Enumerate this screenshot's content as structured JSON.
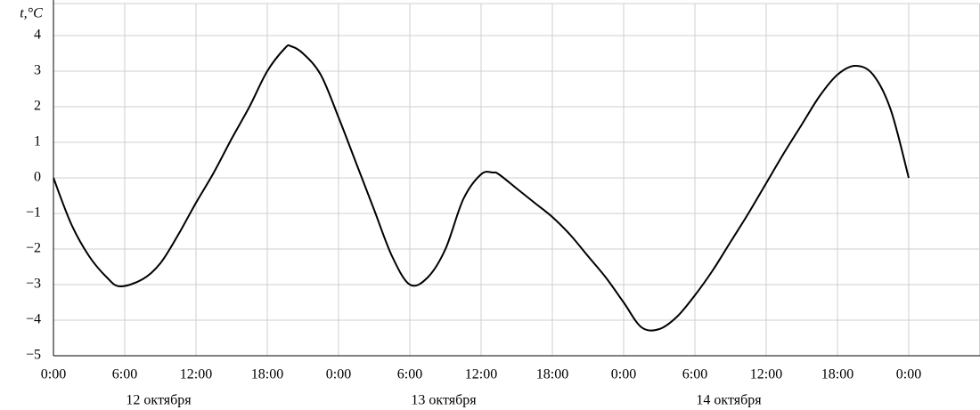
{
  "chart_data": {
    "type": "line",
    "y_label": "t,°C",
    "x": [
      0,
      1.5,
      3,
      4.5,
      5.6,
      7.5,
      9,
      10.5,
      12,
      13.5,
      15,
      16.5,
      18,
      19.5,
      20,
      21,
      22.5,
      24,
      25.5,
      27,
      28.5,
      30,
      31.5,
      33,
      34.5,
      36,
      37,
      37.5,
      39,
      40.5,
      42,
      43.5,
      45,
      46.5,
      48,
      49.5,
      51,
      52.5,
      54,
      55.5,
      57,
      58.5,
      60,
      61.5,
      63,
      64.5,
      66,
      67.5,
      69,
      70.5,
      72
    ],
    "series": [
      {
        "color": "#000000",
        "values": [
          0,
          -1.3,
          -2.2,
          -2.8,
          -3.05,
          -2.85,
          -2.4,
          -1.6,
          -0.7,
          0.15,
          1.1,
          2.0,
          3.0,
          3.65,
          3.7,
          3.5,
          2.9,
          1.7,
          0.4,
          -0.9,
          -2.2,
          -3.0,
          -2.8,
          -2.0,
          -0.6,
          0.1,
          0.15,
          0.1,
          -0.3,
          -0.7,
          -1.1,
          -1.6,
          -2.2,
          -2.8,
          -3.5,
          -4.2,
          -4.25,
          -3.9,
          -3.3,
          -2.6,
          -1.8,
          -1.0,
          -0.15,
          0.7,
          1.5,
          2.3,
          2.9,
          3.15,
          2.9,
          1.9,
          0
        ]
      }
    ],
    "xlim": [
      0,
      78
    ],
    "xticks": [
      {
        "value": 0,
        "label": "0:00"
      },
      {
        "value": 6,
        "label": "6:00"
      },
      {
        "value": 12,
        "label": "12:00"
      },
      {
        "value": 18,
        "label": "18:00"
      },
      {
        "value": 24,
        "label": "0:00"
      },
      {
        "value": 30,
        "label": "6:00"
      },
      {
        "value": 36,
        "label": "12:00"
      },
      {
        "value": 42,
        "label": "18:00"
      },
      {
        "value": 48,
        "label": "0:00"
      },
      {
        "value": 54,
        "label": "6:00"
      },
      {
        "value": 60,
        "label": "12:00"
      },
      {
        "value": 66,
        "label": "18:00"
      },
      {
        "value": 72,
        "label": "0:00"
      }
    ],
    "ylim": [
      -5,
      4.9
    ],
    "yticks": [
      {
        "value": -5,
        "label": "−5"
      },
      {
        "value": -4,
        "label": "−4"
      },
      {
        "value": -3,
        "label": "−3"
      },
      {
        "value": -2,
        "label": "−2"
      },
      {
        "value": -1,
        "label": "−1"
      },
      0,
      1,
      2,
      3,
      4
    ],
    "day_labels": [
      "12 октября",
      "13 октября",
      "14 октября"
    ],
    "grid": true
  }
}
